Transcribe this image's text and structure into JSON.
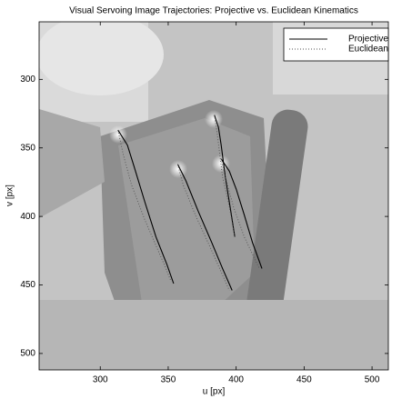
{
  "chart_data": {
    "type": "line",
    "title": "Visual Servoing Image Trajectories: Projective vs. Euclidean Kinematics",
    "x_label": "u [px]",
    "y_label": "v [px]",
    "xlim": [
      255,
      512
    ],
    "ylim": [
      258,
      512
    ],
    "y_inverted": true,
    "xticks": [
      300,
      350,
      400,
      450,
      500
    ],
    "yticks": [
      300,
      350,
      400,
      450,
      500
    ],
    "legend": "upper right",
    "series": [
      {
        "name": "Projective",
        "color": "#000000",
        "dash": "solid",
        "x": [
          313,
          320,
          325,
          333,
          341,
          349,
          354,
          null,
          357,
          363,
          372,
          382,
          390,
          397,
          null,
          384,
          387,
          389,
          392,
          396,
          399,
          null,
          389,
          395,
          400,
          406,
          412,
          419
        ],
        "values": [
          337,
          348,
          364,
          390,
          415,
          435,
          449,
          null,
          362,
          374,
          396,
          419,
          438,
          454,
          null,
          326,
          335,
          348,
          371,
          396,
          415,
          null,
          358,
          367,
          380,
          399,
          419,
          438
        ]
      },
      {
        "name": "Euclidean",
        "color": "#555555",
        "dash": "dotted",
        "x": [
          313,
          317,
          323,
          333,
          347,
          352,
          null,
          357,
          361,
          370,
          382,
          395,
          null,
          384,
          386,
          390,
          395,
          399,
          null,
          389,
          392,
          398,
          406,
          417
        ],
        "values": [
          337,
          355,
          377,
          403,
          435,
          447,
          null,
          362,
          377,
          399,
          425,
          454,
          null,
          326,
          339,
          371,
          393,
          415,
          null,
          358,
          371,
          393,
          415,
          438
        ]
      }
    ]
  }
}
